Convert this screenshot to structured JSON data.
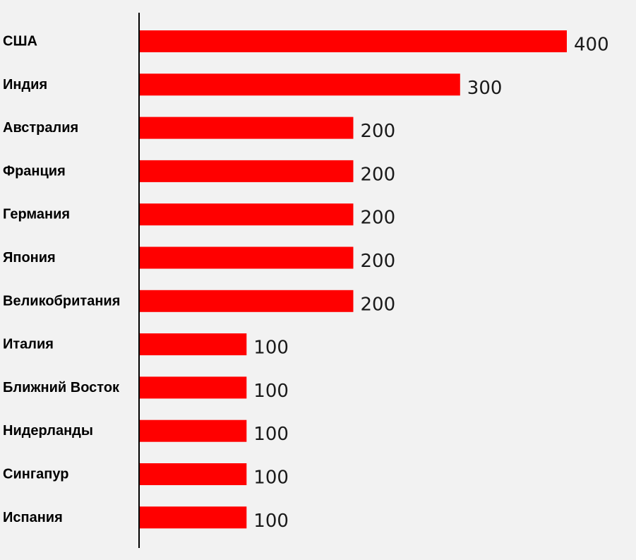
{
  "chart_data": {
    "type": "bar",
    "orientation": "horizontal",
    "categories": [
      "США",
      "Индия",
      "Австралия",
      "Франция",
      "Германия",
      "Япония",
      "Великобритания",
      "Италия",
      "Ближний Восток",
      "Нидерланды",
      "Сингапур",
      "Испания"
    ],
    "values": [
      400,
      300,
      200,
      200,
      200,
      200,
      200,
      100,
      100,
      100,
      100,
      100
    ],
    "data_labels": [
      "400",
      "300",
      "200",
      "200",
      "200",
      "200",
      "200",
      "100",
      "100",
      "100",
      "100",
      "100"
    ],
    "title": "",
    "xlabel": "",
    "ylabel": "",
    "xlim": [
      0,
      400
    ],
    "grid": false,
    "legend": "none",
    "colors": {
      "bar": "#ff0000",
      "axis": "#000000",
      "background": "#f2f2f2"
    }
  }
}
